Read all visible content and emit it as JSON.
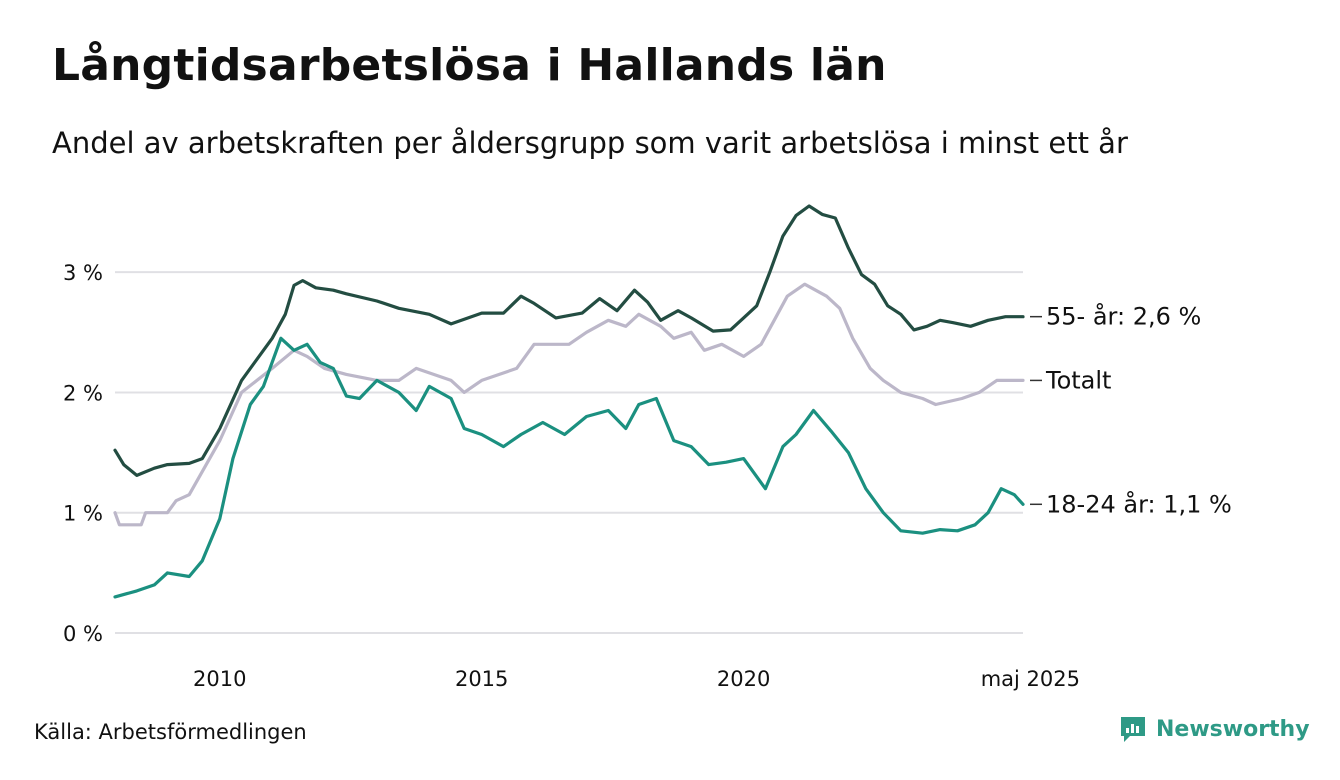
{
  "title": "Långtidsarbetslösa i Hallands län",
  "subtitle": "Andel av arbetskraften per åldersgrupp som varit arbetslösa i minst ett år",
  "source": "Källa: Arbetsförmedlingen",
  "brand": "Newsworthy",
  "colors": {
    "series_55": "#234d42",
    "series_total": "#bcb7c9",
    "series_18_24": "#1b9080",
    "grid": "#e0e0e4",
    "brand": "#2e9a86"
  },
  "chart_data": {
    "type": "line",
    "title": "Långtidsarbetslösa i Hallands län",
    "subtitle": "Andel av arbetskraften per åldersgrupp som varit arbetslösa i minst ett år",
    "xlabel": "",
    "ylabel": "",
    "xlim": [
      "2008-01",
      "2025-05"
    ],
    "ylim": [
      0,
      3.6
    ],
    "grid": true,
    "legend": "labels at line ends",
    "x_ticks": [
      {
        "date": "2010-01",
        "label": "2010"
      },
      {
        "date": "2015-01",
        "label": "2015"
      },
      {
        "date": "2020-01",
        "label": "2020"
      },
      {
        "date": "2025-05",
        "label": "maj 2025"
      }
    ],
    "y_ticks": [
      {
        "value": 0,
        "label": "0 %"
      },
      {
        "value": 1,
        "label": "1 %"
      },
      {
        "value": 2,
        "label": "2 %"
      },
      {
        "value": 3,
        "label": "3 %"
      }
    ],
    "series": [
      {
        "key": "series_55",
        "end_label": "55- år: 2,6 %",
        "points": [
          [
            "2008-01",
            1.52
          ],
          [
            "2008-03",
            1.4
          ],
          [
            "2008-06",
            1.31
          ],
          [
            "2008-10",
            1.37
          ],
          [
            "2009-01",
            1.4
          ],
          [
            "2009-06",
            1.41
          ],
          [
            "2009-09",
            1.45
          ],
          [
            "2010-01",
            1.7
          ],
          [
            "2010-06",
            2.1
          ],
          [
            "2011-01",
            2.45
          ],
          [
            "2011-04",
            2.65
          ],
          [
            "2011-06",
            2.89
          ],
          [
            "2011-08",
            2.93
          ],
          [
            "2011-11",
            2.87
          ],
          [
            "2012-03",
            2.85
          ],
          [
            "2012-06",
            2.82
          ],
          [
            "2013-01",
            2.76
          ],
          [
            "2013-06",
            2.7
          ],
          [
            "2014-01",
            2.65
          ],
          [
            "2014-06",
            2.57
          ],
          [
            "2015-01",
            2.66
          ],
          [
            "2015-06",
            2.66
          ],
          [
            "2015-10",
            2.8
          ],
          [
            "2016-01",
            2.74
          ],
          [
            "2016-06",
            2.62
          ],
          [
            "2016-12",
            2.66
          ],
          [
            "2017-04",
            2.78
          ],
          [
            "2017-08",
            2.68
          ],
          [
            "2017-12",
            2.85
          ],
          [
            "2018-03",
            2.75
          ],
          [
            "2018-06",
            2.6
          ],
          [
            "2018-10",
            2.68
          ],
          [
            "2019-01",
            2.62
          ],
          [
            "2019-06",
            2.51
          ],
          [
            "2019-10",
            2.52
          ],
          [
            "2020-01",
            2.62
          ],
          [
            "2020-04",
            2.72
          ],
          [
            "2020-07",
            3.0
          ],
          [
            "2020-10",
            3.3
          ],
          [
            "2021-01",
            3.47
          ],
          [
            "2021-04",
            3.55
          ],
          [
            "2021-07",
            3.48
          ],
          [
            "2021-10",
            3.45
          ],
          [
            "2022-01",
            3.2
          ],
          [
            "2022-04",
            2.98
          ],
          [
            "2022-07",
            2.9
          ],
          [
            "2022-10",
            2.72
          ],
          [
            "2023-01",
            2.65
          ],
          [
            "2023-04",
            2.52
          ],
          [
            "2023-07",
            2.55
          ],
          [
            "2023-10",
            2.6
          ],
          [
            "2024-01",
            2.58
          ],
          [
            "2024-05",
            2.55
          ],
          [
            "2024-09",
            2.6
          ],
          [
            "2025-01",
            2.63
          ],
          [
            "2025-05",
            2.63
          ]
        ]
      },
      {
        "key": "series_total",
        "end_label": "Totalt",
        "points": [
          [
            "2008-01",
            1.0
          ],
          [
            "2008-02",
            0.9
          ],
          [
            "2008-07",
            0.9
          ],
          [
            "2008-08",
            1.0
          ],
          [
            "2009-01",
            1.0
          ],
          [
            "2009-03",
            1.1
          ],
          [
            "2009-06",
            1.15
          ],
          [
            "2010-01",
            1.6
          ],
          [
            "2010-06",
            2.0
          ],
          [
            "2011-01",
            2.2
          ],
          [
            "2011-06",
            2.35
          ],
          [
            "2011-09",
            2.3
          ],
          [
            "2012-01",
            2.2
          ],
          [
            "2012-06",
            2.15
          ],
          [
            "2013-01",
            2.1
          ],
          [
            "2013-06",
            2.1
          ],
          [
            "2013-10",
            2.2
          ],
          [
            "2014-06",
            2.1
          ],
          [
            "2014-09",
            2.0
          ],
          [
            "2015-01",
            2.1
          ],
          [
            "2015-09",
            2.2
          ],
          [
            "2016-01",
            2.4
          ],
          [
            "2016-09",
            2.4
          ],
          [
            "2017-01",
            2.5
          ],
          [
            "2017-06",
            2.6
          ],
          [
            "2017-10",
            2.55
          ],
          [
            "2018-01",
            2.65
          ],
          [
            "2018-06",
            2.55
          ],
          [
            "2018-09",
            2.45
          ],
          [
            "2019-01",
            2.5
          ],
          [
            "2019-04",
            2.35
          ],
          [
            "2019-08",
            2.4
          ],
          [
            "2020-01",
            2.3
          ],
          [
            "2020-05",
            2.4
          ],
          [
            "2020-08",
            2.6
          ],
          [
            "2020-11",
            2.8
          ],
          [
            "2021-03",
            2.9
          ],
          [
            "2021-08",
            2.8
          ],
          [
            "2021-11",
            2.7
          ],
          [
            "2022-02",
            2.45
          ],
          [
            "2022-06",
            2.2
          ],
          [
            "2022-09",
            2.1
          ],
          [
            "2023-01",
            2.0
          ],
          [
            "2023-06",
            1.95
          ],
          [
            "2023-09",
            1.9
          ],
          [
            "2024-03",
            1.95
          ],
          [
            "2024-07",
            2.0
          ],
          [
            "2024-11",
            2.1
          ],
          [
            "2025-05",
            2.1
          ]
        ]
      },
      {
        "key": "series_18_24",
        "end_label": "18-24 år: 1,1 %",
        "points": [
          [
            "2008-01",
            0.3
          ],
          [
            "2008-06",
            0.35
          ],
          [
            "2008-10",
            0.4
          ],
          [
            "2009-01",
            0.5
          ],
          [
            "2009-06",
            0.47
          ],
          [
            "2009-09",
            0.6
          ],
          [
            "2010-01",
            0.95
          ],
          [
            "2010-04",
            1.45
          ],
          [
            "2010-08",
            1.9
          ],
          [
            "2010-11",
            2.05
          ],
          [
            "2011-03",
            2.45
          ],
          [
            "2011-06",
            2.35
          ],
          [
            "2011-09",
            2.4
          ],
          [
            "2011-12",
            2.25
          ],
          [
            "2012-03",
            2.2
          ],
          [
            "2012-06",
            1.97
          ],
          [
            "2012-09",
            1.95
          ],
          [
            "2013-01",
            2.1
          ],
          [
            "2013-06",
            2.0
          ],
          [
            "2013-10",
            1.85
          ],
          [
            "2014-01",
            2.05
          ],
          [
            "2014-06",
            1.95
          ],
          [
            "2014-09",
            1.7
          ],
          [
            "2015-01",
            1.65
          ],
          [
            "2015-06",
            1.55
          ],
          [
            "2015-10",
            1.65
          ],
          [
            "2016-03",
            1.75
          ],
          [
            "2016-08",
            1.65
          ],
          [
            "2017-01",
            1.8
          ],
          [
            "2017-06",
            1.85
          ],
          [
            "2017-10",
            1.7
          ],
          [
            "2018-01",
            1.9
          ],
          [
            "2018-05",
            1.95
          ],
          [
            "2018-09",
            1.6
          ],
          [
            "2019-01",
            1.55
          ],
          [
            "2019-05",
            1.4
          ],
          [
            "2019-09",
            1.42
          ],
          [
            "2020-01",
            1.45
          ],
          [
            "2020-06",
            1.2
          ],
          [
            "2020-10",
            1.55
          ],
          [
            "2021-01",
            1.65
          ],
          [
            "2021-05",
            1.85
          ],
          [
            "2021-09",
            1.68
          ],
          [
            "2022-01",
            1.5
          ],
          [
            "2022-05",
            1.2
          ],
          [
            "2022-09",
            1.0
          ],
          [
            "2023-01",
            0.85
          ],
          [
            "2023-06",
            0.83
          ],
          [
            "2023-10",
            0.86
          ],
          [
            "2024-02",
            0.85
          ],
          [
            "2024-06",
            0.9
          ],
          [
            "2024-09",
            1.0
          ],
          [
            "2024-12",
            1.2
          ],
          [
            "2025-03",
            1.15
          ],
          [
            "2025-05",
            1.07
          ]
        ]
      }
    ]
  }
}
